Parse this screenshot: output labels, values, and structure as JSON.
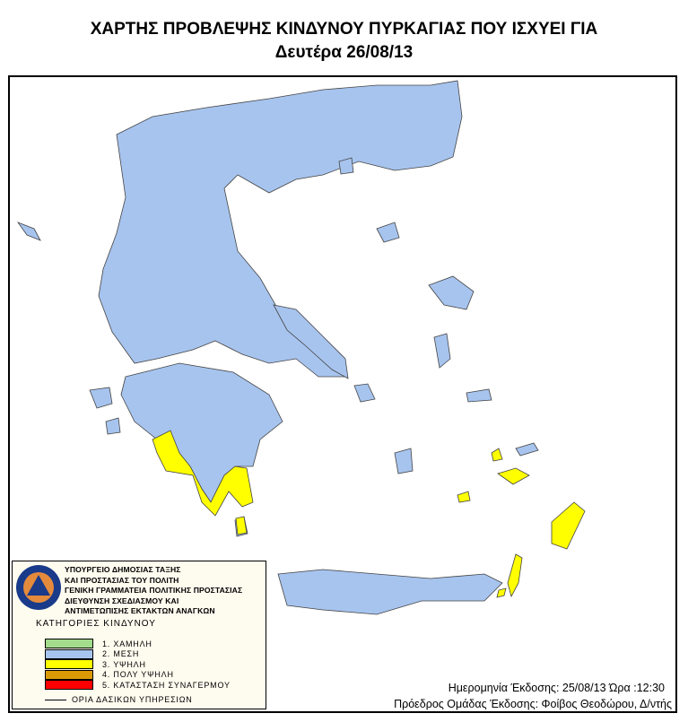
{
  "title": {
    "line1": "ΧΑΡΤΗΣ ΠΡΟΒΛΕΨΗΣ ΚΙΝΔΥΝΟΥ ΠΥΡΚΑΓΙΑΣ ΠΟΥ ΙΣΧΥΕΙ ΓΙΑ",
    "line2": "Δευτέρα 26/08/13"
  },
  "legend": {
    "org_lines": [
      "ΥΠΟΥΡΓΕΙΟ ΔΗΜΟΣΙΑΣ ΤΑΞΗΣ",
      "ΚΑΙ ΠΡΟΣΤΑΣΙΑΣ ΤΟΥ ΠΟΛΙΤΗ",
      "ΓΕΝΙΚΗ ΓΡΑΜΜΑΤΕΙΑ ΠΟΛΙΤΙΚΗΣ ΠΡΟΣΤΑΣΙΑΣ",
      "ΔΙΕΥΘΥΝΣΗ ΣΧΕΔΙΑΣΜΟΥ ΚΑΙ",
      "ΑΝΤΙΜΕΤΩΠΙΣΗΣ ΕΚΤΑΚΤΩΝ ΑΝΑΓΚΩΝ"
    ],
    "logo_text": "ΠΟΛΙΤΙΚΗ ΠΡΟΣΤΑΣΙΑ ΕΛΛΑΔΑ",
    "categories_title": "ΚΑΤΗΓΟΡΙΕΣ ΚΙΝΔΥΝΟΥ",
    "categories": [
      {
        "label": "1. ΧΑΜΗΛΗ",
        "color": "#a3dc8c"
      },
      {
        "label": "2. ΜΕΣΗ",
        "color": "#a7c4ee"
      },
      {
        "label": "3. ΥΨΗΛΗ",
        "color": "#ffff00"
      },
      {
        "label": "4. ΠΟΛΥ ΥΨΗΛΗ",
        "color": "#d99a06"
      },
      {
        "label": "5. ΚΑΤΑΣΤΑΣΗ ΣΥΝΑΓΕΡΜΟΥ",
        "color": "#ff0000"
      }
    ],
    "boundary_label": "ΟΡΙΑ ΔΑΣΙΚΩΝ ΥΠΗΡΕΣΙΩΝ"
  },
  "issue": {
    "line1": "Ημερομηνία Έκδοσης: 25/08/13  Ώρα :12:30",
    "line2": "Πρόεδρος Ομάδας Έκδοσης: Φοίβος Θεοδώρου, Δ/ντής"
  },
  "map": {
    "regions": [
      {
        "name": "mainland",
        "risk": "2. ΜΕΣΗ"
      },
      {
        "name": "peloponnese",
        "risk": "2. ΜΕΣΗ"
      },
      {
        "name": "southwest-peloponnese",
        "risk": "3. ΥΨΗΛΗ"
      },
      {
        "name": "crete",
        "risk": "2. ΜΕΣΗ"
      },
      {
        "name": "rhodes",
        "risk": "3. ΥΨΗΛΗ"
      },
      {
        "name": "karpathos",
        "risk": "3. ΥΨΗΛΗ"
      }
    ]
  }
}
